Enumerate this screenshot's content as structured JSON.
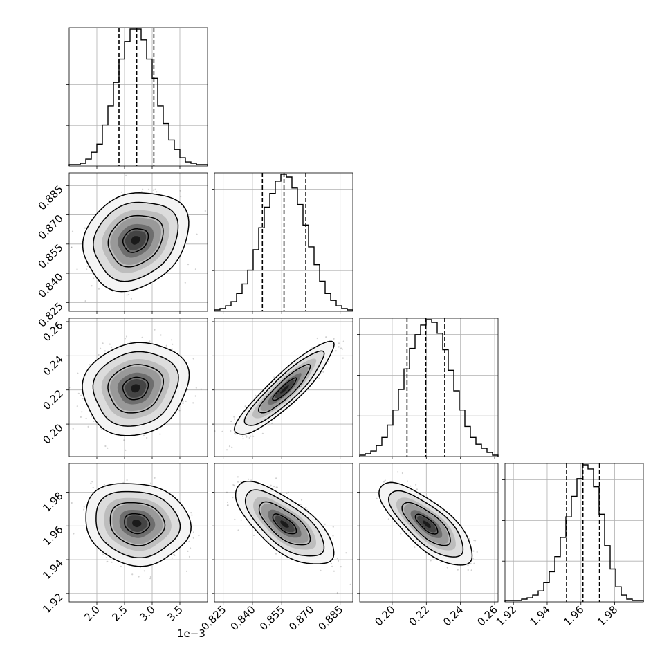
{
  "chart_data": {
    "type": "corner",
    "offset_text": "1e−3",
    "grid": true,
    "parameters": [
      {
        "range": [
          1.5,
          4.0
        ],
        "ticks": [
          2.0,
          2.5,
          3.0,
          3.5
        ],
        "tick_labels": [
          "2.0",
          "2.5",
          "3.0",
          "3.5"
        ],
        "histogram": {
          "edges": [
            1.5,
            1.6,
            1.7,
            1.8,
            1.9,
            2.0,
            2.1,
            2.2,
            2.3,
            2.4,
            2.5,
            2.6,
            2.7,
            2.8,
            2.9,
            3.0,
            3.1,
            3.2,
            3.3,
            3.4,
            3.5,
            3.6,
            3.7,
            3.8,
            3.9,
            4.0
          ],
          "counts": [
            1,
            1,
            2,
            5,
            10,
            16,
            30,
            44,
            61,
            78,
            91,
            100,
            100,
            92,
            78,
            64,
            44,
            31,
            19,
            12,
            6,
            3,
            2,
            1,
            1
          ]
        },
        "quantiles": [
          2.4,
          2.72,
          3.03
        ]
      },
      {
        "range": [
          0.8205,
          0.8915
        ],
        "ticks": [
          0.825,
          0.84,
          0.855,
          0.87,
          0.885
        ],
        "tick_labels": [
          "0.825",
          "0.840",
          "0.855",
          "0.870",
          "0.885"
        ],
        "histogram": {
          "edges": [
            0.8205,
            0.82334,
            0.82618,
            0.82902,
            0.83186,
            0.8347,
            0.83754,
            0.84038,
            0.84322,
            0.84606,
            0.8489,
            0.85174,
            0.85458,
            0.85742,
            0.86026,
            0.8631,
            0.86594,
            0.86878,
            0.87162,
            0.87446,
            0.8773,
            0.88014,
            0.88298,
            0.88582,
            0.88866,
            0.8915
          ],
          "counts": [
            1,
            2,
            4,
            7,
            13,
            20,
            30,
            45,
            61,
            76,
            86,
            95,
            100,
            98,
            90,
            78,
            63,
            47,
            34,
            22,
            13,
            8,
            4,
            2,
            1
          ]
        },
        "quantiles": [
          0.8451,
          0.8562,
          0.8674
        ]
      },
      {
        "range": [
          0.181,
          0.262
        ],
        "ticks": [
          0.2,
          0.22,
          0.24,
          0.26
        ],
        "tick_labels": [
          "0.20",
          "0.22",
          "0.24",
          "0.26"
        ],
        "histogram": {
          "edges": [
            0.181,
            0.18424,
            0.18748,
            0.19072,
            0.19396,
            0.1972,
            0.20044,
            0.20368,
            0.20692,
            0.21016,
            0.2134,
            0.21664,
            0.21988,
            0.22312,
            0.22636,
            0.2296,
            0.23284,
            0.23608,
            0.23932,
            0.24256,
            0.2458,
            0.24904,
            0.25228,
            0.25552,
            0.25876,
            0.262
          ],
          "counts": [
            1,
            2,
            4,
            8,
            14,
            23,
            34,
            49,
            64,
            79,
            89,
            96,
            100,
            98,
            90,
            78,
            63,
            48,
            34,
            22,
            14,
            9,
            6,
            3,
            1
          ]
        },
        "quantiles": [
          0.2087,
          0.2197,
          0.2308
        ]
      },
      {
        "range": [
          1.915,
          1.997
        ],
        "ticks": [
          1.92,
          1.94,
          1.96,
          1.98
        ],
        "tick_labels": [
          "1.92",
          "1.94",
          "1.96",
          "1.98"
        ],
        "histogram": {
          "edges": [
            1.915,
            1.91828,
            1.92156,
            1.92484,
            1.92812,
            1.9314,
            1.93468,
            1.93796,
            1.94124,
            1.94452,
            1.9478,
            1.95108,
            1.95436,
            1.95764,
            1.96092,
            1.9642,
            1.96748,
            1.97076,
            1.97404,
            1.97732,
            1.9806,
            1.98388,
            1.98716,
            1.99044,
            1.99372,
            1.997
          ],
          "counts": [
            1,
            1,
            1,
            2,
            3,
            5,
            8,
            14,
            22,
            33,
            47,
            62,
            77,
            90,
            100,
            97,
            84,
            64,
            41,
            24,
            11,
            5,
            2,
            1,
            1
          ]
        },
        "quantiles": [
          1.9515,
          1.9612,
          1.971
        ]
      }
    ],
    "panels": [
      {
        "row": 1,
        "col": 0,
        "center": [
          2.7,
          0.857
        ],
        "sigma": [
          0.38,
          0.0101
        ],
        "correlation": 0.2
      },
      {
        "row": 2,
        "col": 0,
        "center": [
          2.7,
          0.221
        ],
        "sigma": [
          0.38,
          0.0109
        ],
        "correlation": 0.12
      },
      {
        "row": 2,
        "col": 1,
        "center": [
          0.8565,
          0.2203
        ],
        "sigma": [
          0.0101,
          0.0109
        ],
        "correlation": 0.9
      },
      {
        "row": 3,
        "col": 0,
        "center": [
          2.72,
          1.9615
        ],
        "sigma": [
          0.38,
          0.0098
        ],
        "correlation": -0.1
      },
      {
        "row": 3,
        "col": 1,
        "center": [
          0.8565,
          1.961
        ],
        "sigma": [
          0.0101,
          0.0098
        ],
        "correlation": -0.7
      },
      {
        "row": 3,
        "col": 2,
        "center": [
          0.2203,
          1.961
        ],
        "sigma": [
          0.0109,
          0.0098
        ],
        "correlation": -0.75
      }
    ]
  }
}
